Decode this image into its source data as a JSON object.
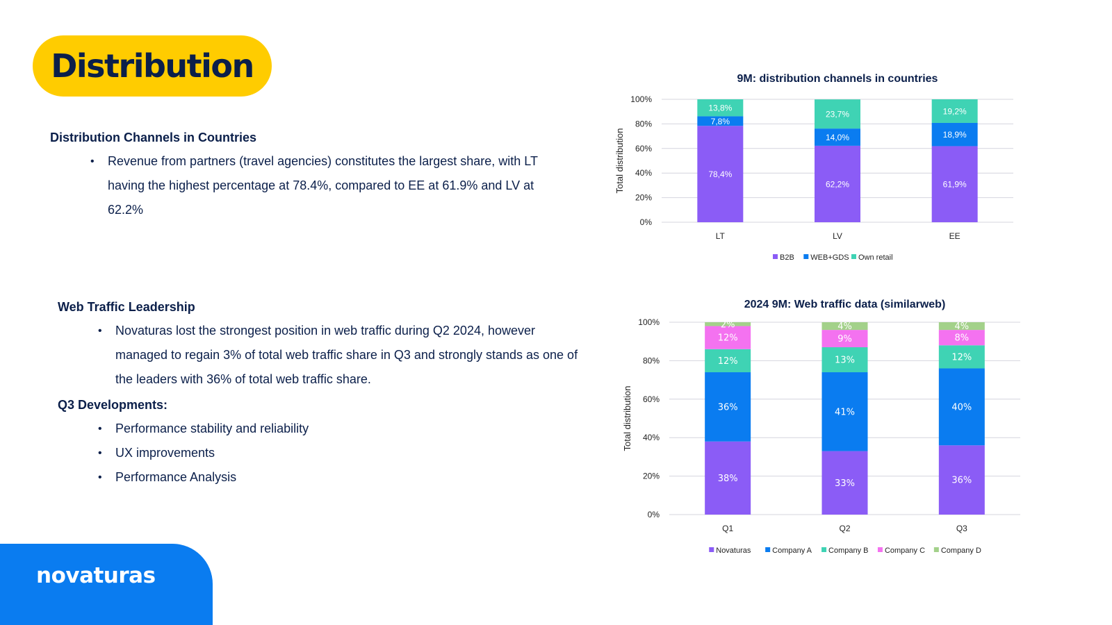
{
  "page": {
    "title": "Distribution",
    "sections": {
      "distribution": {
        "heading": "Distribution Channels in Countries",
        "bullets": [
          "Revenue from partners (travel agencies) constitutes the largest share, with LT having the highest percentage at 78.4%, compared to EE at 61.9% and LV at 62.2%"
        ]
      },
      "web_traffic": {
        "heading": "Web Traffic Leadership",
        "bullets": [
          "Novaturas lost the strongest position in web traffic during Q2 2024, however managed to regain 3% of total web traffic share in Q3 and strongly stands as one of the leaders with 36% of total web traffic share."
        ]
      },
      "q3": {
        "heading": "Q3 Developments:",
        "bullets": [
          "Performance stability and reliability",
          "UX improvements",
          "Performance Analysis"
        ]
      }
    },
    "logo": {
      "text": "novaturas",
      "icon": "globe-icon"
    }
  },
  "chart_data": [
    {
      "type": "bar",
      "stacked": true,
      "title": "9M: distribution channels in countries",
      "ylabel": "Total distribution",
      "xlabel": "",
      "ylim": [
        0,
        100
      ],
      "yticks": [
        "0%",
        "20%",
        "40%",
        "60%",
        "80%",
        "100%"
      ],
      "categories": [
        "LT",
        "LV",
        "EE"
      ],
      "series": [
        {
          "name": "B2B",
          "color": "#8b5cf6",
          "values": [
            78.4,
            62.2,
            61.9
          ],
          "labels": [
            "78,4%",
            "62,2%",
            "61,9%"
          ]
        },
        {
          "name": "WEB+GDS",
          "color": "#0a7cf0",
          "values": [
            7.8,
            14.0,
            18.9
          ],
          "labels": [
            "7,8%",
            "14,0%",
            "18,9%"
          ]
        },
        {
          "name": "Own retail",
          "color": "#3fd3b4",
          "values": [
            13.8,
            23.7,
            19.2
          ],
          "labels": [
            "13,8%",
            "23,7%",
            "19,2%"
          ]
        }
      ],
      "legend": "bottom",
      "grid": true
    },
    {
      "type": "bar",
      "stacked": true,
      "title": "2024 9M: Web traffic data (similarweb)",
      "ylabel": "Total distribution",
      "xlabel": "",
      "ylim": [
        0,
        100
      ],
      "yticks": [
        "0%",
        "20%",
        "40%",
        "60%",
        "80%",
        "100%"
      ],
      "categories": [
        "Q1",
        "Q2",
        "Q3"
      ],
      "series": [
        {
          "name": "Novaturas",
          "color": "#8b5cf6",
          "values": [
            38,
            33,
            36
          ],
          "labels": [
            "38%",
            "33%",
            "36%"
          ]
        },
        {
          "name": "Company A",
          "color": "#0a7cf0",
          "values": [
            36,
            41,
            40
          ],
          "labels": [
            "36%",
            "41%",
            "40%"
          ]
        },
        {
          "name": "Company B",
          "color": "#3fd3b4",
          "values": [
            12,
            13,
            12
          ],
          "labels": [
            "12%",
            "13%",
            "12%"
          ]
        },
        {
          "name": "Company C",
          "color": "#f472f0",
          "values": [
            12,
            9,
            8
          ],
          "labels": [
            "12%",
            "9%",
            "8%"
          ]
        },
        {
          "name": "Company D",
          "color": "#a3d18a",
          "values": [
            2,
            4,
            4
          ],
          "labels": [
            "2%",
            "4%",
            "4%"
          ]
        }
      ],
      "legend": "bottom",
      "grid": true
    }
  ]
}
